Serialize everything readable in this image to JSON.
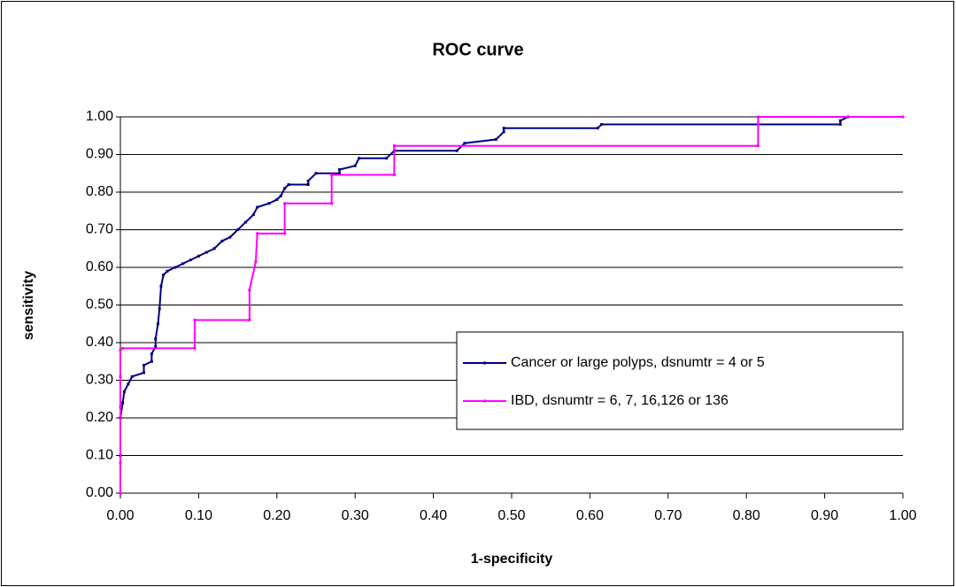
{
  "chart_data": {
    "type": "line",
    "title": "ROC curve",
    "xlabel": "1-specificity",
    "ylabel": "sensitivity",
    "xlim": [
      0,
      1
    ],
    "ylim": [
      0,
      1
    ],
    "xticks": [
      {
        "value": 0,
        "label": "0.00"
      },
      {
        "value": 0.1,
        "label": "0.10"
      },
      {
        "value": 0.2,
        "label": "0.20"
      },
      {
        "value": 0.3,
        "label": "0.30"
      },
      {
        "value": 0.4,
        "label": "0.40"
      },
      {
        "value": 0.5,
        "label": "0.50"
      },
      {
        "value": 0.6,
        "label": "0.60"
      },
      {
        "value": 0.7,
        "label": "0.70"
      },
      {
        "value": 0.8,
        "label": "0.80"
      },
      {
        "value": 0.9,
        "label": "0.90"
      },
      {
        "value": 1,
        "label": "1.00"
      }
    ],
    "yticks": [
      {
        "value": 0,
        "label": "0.00"
      },
      {
        "value": 0.1,
        "label": "0.10"
      },
      {
        "value": 0.2,
        "label": "0.20"
      },
      {
        "value": 0.3,
        "label": "0.30"
      },
      {
        "value": 0.4,
        "label": "0.40"
      },
      {
        "value": 0.5,
        "label": "0.50"
      },
      {
        "value": 0.6,
        "label": "0.60"
      },
      {
        "value": 0.7,
        "label": "0.70"
      },
      {
        "value": 0.8,
        "label": "0.80"
      },
      {
        "value": 0.9,
        "label": "0.90"
      },
      {
        "value": 1,
        "label": "1.00"
      }
    ],
    "grid": true,
    "legend": "right",
    "series": [
      {
        "name": "Cancer or large polyps, dsnumtr = 4 or 5",
        "color": "#000080",
        "x": [
          0,
          0,
          0,
          0.003,
          0.005,
          0.01,
          0.015,
          0.03,
          0.03,
          0.04,
          0.04,
          0.045,
          0.045,
          0.048,
          0.05,
          0.052,
          0.055,
          0.06,
          0.07,
          0.08,
          0.09,
          0.1,
          0.11,
          0.12,
          0.13,
          0.14,
          0.15,
          0.16,
          0.17,
          0.175,
          0.19,
          0.2,
          0.205,
          0.21,
          0.215,
          0.24,
          0.24,
          0.25,
          0.28,
          0.28,
          0.3,
          0.305,
          0.34,
          0.35,
          0.43,
          0.44,
          0.48,
          0.49,
          0.49,
          0.61,
          0.615,
          0.92,
          0.92,
          0.93,
          1.0
        ],
        "values": [
          0,
          0.1,
          0.2,
          0.24,
          0.27,
          0.29,
          0.31,
          0.32,
          0.34,
          0.35,
          0.37,
          0.39,
          0.41,
          0.45,
          0.49,
          0.55,
          0.58,
          0.59,
          0.6,
          0.61,
          0.62,
          0.63,
          0.64,
          0.65,
          0.67,
          0.68,
          0.7,
          0.72,
          0.74,
          0.76,
          0.77,
          0.78,
          0.79,
          0.81,
          0.82,
          0.82,
          0.83,
          0.85,
          0.85,
          0.86,
          0.87,
          0.89,
          0.89,
          0.91,
          0.91,
          0.93,
          0.94,
          0.96,
          0.97,
          0.97,
          0.98,
          0.98,
          0.99,
          1.0,
          1.0
        ]
      },
      {
        "name": "IBD, dsnumtr = 6, 7, 16,126 or 136",
        "color": "#ff00ff",
        "x": [
          0,
          0,
          0,
          0,
          0,
          0.003,
          0.095,
          0.095,
          0.165,
          0.165,
          0.173,
          0.175,
          0.21,
          0.21,
          0.27,
          0.27,
          0.35,
          0.35,
          0.815,
          0.815,
          1.0
        ],
        "values": [
          0,
          0.08,
          0.23,
          0.31,
          0.38,
          0.385,
          0.385,
          0.46,
          0.46,
          0.54,
          0.615,
          0.69,
          0.69,
          0.77,
          0.77,
          0.846,
          0.846,
          0.923,
          0.923,
          1.0,
          1.0
        ]
      }
    ]
  }
}
